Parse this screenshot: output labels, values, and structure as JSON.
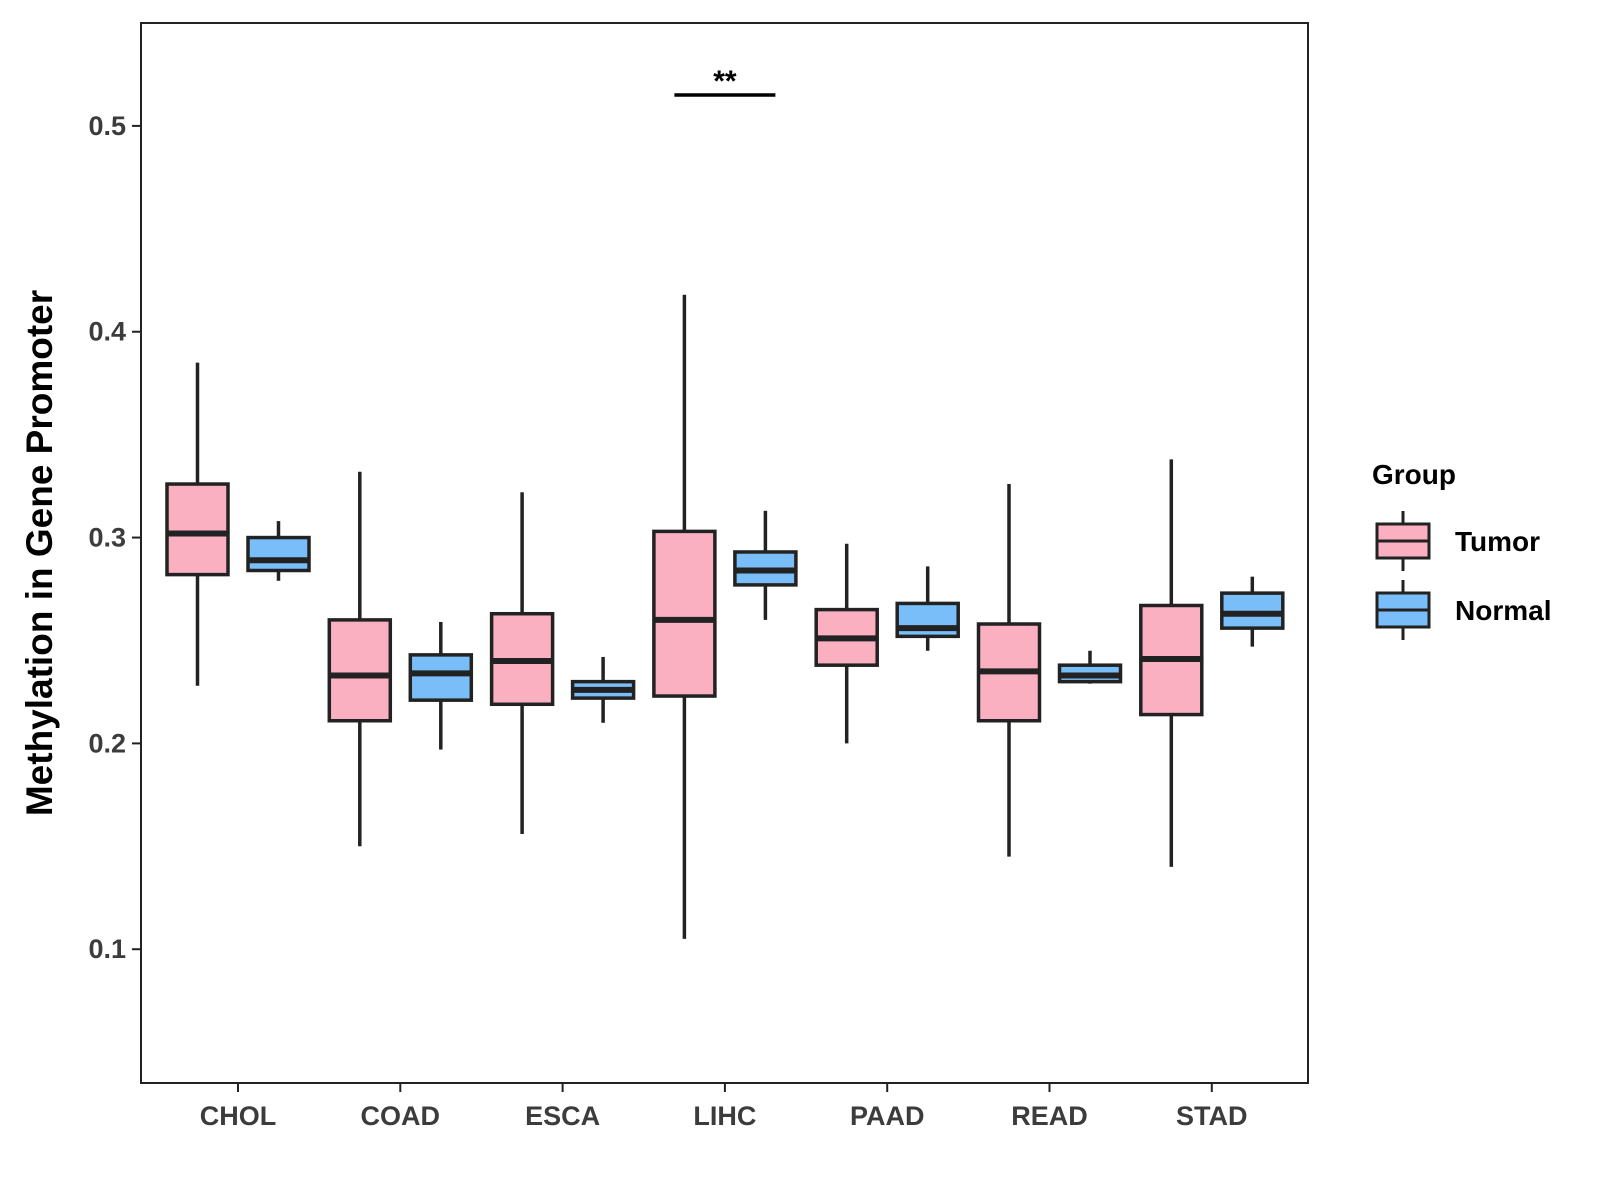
{
  "chart_data": {
    "type": "boxplot",
    "title": "",
    "xlabel": "",
    "ylabel": "Methylation in Gene Promoter",
    "ylim": [
      0.035,
      0.55
    ],
    "yticks": [
      0.1,
      0.2,
      0.3,
      0.4,
      0.5
    ],
    "ytick_labels": [
      "0.1",
      "0.2",
      "0.3",
      "0.4",
      "0.5"
    ],
    "categories": [
      "CHOL",
      "COAD",
      "ESCA",
      "LIHC",
      "PAAD",
      "READ",
      "STAD"
    ],
    "legend": {
      "title": "Group",
      "position": "right",
      "entries": [
        {
          "name": "Tumor",
          "color": "#FBB0C2"
        },
        {
          "name": "Normal",
          "color": "#79BEF8"
        }
      ]
    },
    "series": [
      {
        "name": "Tumor",
        "color": "#FBB0C2",
        "boxes": [
          {
            "category": "CHOL",
            "min": 0.228,
            "q1": 0.282,
            "median": 0.302,
            "q3": 0.326,
            "max": 0.385
          },
          {
            "category": "COAD",
            "min": 0.15,
            "q1": 0.211,
            "median": 0.233,
            "q3": 0.26,
            "max": 0.332
          },
          {
            "category": "ESCA",
            "min": 0.156,
            "q1": 0.219,
            "median": 0.24,
            "q3": 0.263,
            "max": 0.322
          },
          {
            "category": "LIHC",
            "min": 0.105,
            "q1": 0.223,
            "median": 0.26,
            "q3": 0.303,
            "max": 0.418
          },
          {
            "category": "PAAD",
            "min": 0.2,
            "q1": 0.238,
            "median": 0.251,
            "q3": 0.265,
            "max": 0.297
          },
          {
            "category": "READ",
            "min": 0.145,
            "q1": 0.211,
            "median": 0.235,
            "q3": 0.258,
            "max": 0.326
          },
          {
            "category": "STAD",
            "min": 0.14,
            "q1": 0.214,
            "median": 0.241,
            "q3": 0.267,
            "max": 0.338
          }
        ]
      },
      {
        "name": "Normal",
        "color": "#79BEF8",
        "boxes": [
          {
            "category": "CHOL",
            "min": 0.279,
            "q1": 0.284,
            "median": 0.289,
            "q3": 0.3,
            "max": 0.308
          },
          {
            "category": "COAD",
            "min": 0.197,
            "q1": 0.221,
            "median": 0.234,
            "q3": 0.243,
            "max": 0.259
          },
          {
            "category": "ESCA",
            "min": 0.21,
            "q1": 0.222,
            "median": 0.226,
            "q3": 0.23,
            "max": 0.242
          },
          {
            "category": "LIHC",
            "min": 0.26,
            "q1": 0.277,
            "median": 0.284,
            "q3": 0.293,
            "max": 0.313
          },
          {
            "category": "PAAD",
            "min": 0.245,
            "q1": 0.252,
            "median": 0.256,
            "q3": 0.268,
            "max": 0.286
          },
          {
            "category": "READ",
            "min": 0.229,
            "q1": 0.23,
            "median": 0.233,
            "q3": 0.238,
            "max": 0.245
          },
          {
            "category": "STAD",
            "min": 0.247,
            "q1": 0.256,
            "median": 0.263,
            "q3": 0.273,
            "max": 0.281
          }
        ]
      }
    ],
    "annotations": [
      {
        "category": "LIHC",
        "text": "**",
        "y": 0.515
      }
    ]
  }
}
